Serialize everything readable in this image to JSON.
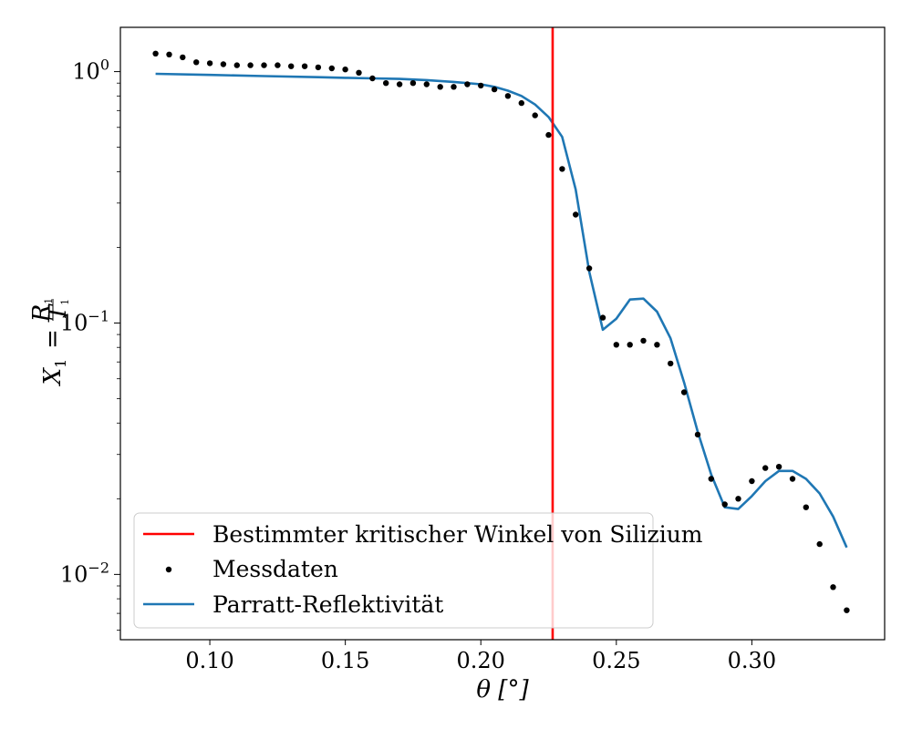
{
  "chart_data": {
    "type": "line",
    "xlabel": "θ [°]",
    "ylabel": "X₁ = R₁/T₁",
    "ylabel_parts": {
      "lhs": "X",
      "lhs_sub": "1",
      "eq": "=",
      "num": "R",
      "num_sub": "1",
      "den": "T",
      "den_sub": "1"
    },
    "xlim": [
      0.067,
      0.349
    ],
    "ylim": [
      0.0055,
      1.5
    ],
    "yscale": "log",
    "grid": false,
    "legend_position": "lower-left",
    "x_ticks": [
      0.1,
      0.15,
      0.2,
      0.25,
      0.3
    ],
    "x_tick_labels": [
      "0.10",
      "0.15",
      "0.20",
      "0.25",
      "0.30"
    ],
    "y_ticks": [
      1.0,
      0.1,
      0.01
    ],
    "y_tick_labels": [
      {
        "base": "10",
        "exp": "0"
      },
      {
        "base": "10",
        "exp": "−1"
      },
      {
        "base": "10",
        "exp": "−2"
      }
    ],
    "vline": {
      "name": "Bestimmter kritischer Winkel von Silizium",
      "x": 0.2265,
      "color": "#ff0000"
    },
    "series": [
      {
        "name": "Messdaten",
        "style": "points",
        "color": "#000000",
        "x": [
          0.08,
          0.085,
          0.09,
          0.095,
          0.1,
          0.105,
          0.11,
          0.115,
          0.12,
          0.125,
          0.13,
          0.135,
          0.14,
          0.145,
          0.15,
          0.155,
          0.16,
          0.165,
          0.17,
          0.175,
          0.18,
          0.185,
          0.19,
          0.195,
          0.2,
          0.205,
          0.21,
          0.215,
          0.22,
          0.225,
          0.23,
          0.235,
          0.24,
          0.245,
          0.25,
          0.255,
          0.26,
          0.265,
          0.27,
          0.275,
          0.28,
          0.285,
          0.29,
          0.295,
          0.3,
          0.305,
          0.31,
          0.315,
          0.32,
          0.325,
          0.33,
          0.335
        ],
        "y": [
          1.18,
          1.17,
          1.14,
          1.09,
          1.08,
          1.07,
          1.06,
          1.06,
          1.06,
          1.06,
          1.05,
          1.05,
          1.04,
          1.03,
          1.02,
          0.99,
          0.94,
          0.9,
          0.89,
          0.9,
          0.89,
          0.87,
          0.87,
          0.89,
          0.88,
          0.85,
          0.8,
          0.75,
          0.67,
          0.56,
          0.41,
          0.27,
          0.165,
          0.105,
          0.082,
          0.082,
          0.085,
          0.082,
          0.069,
          0.053,
          0.036,
          0.024,
          0.019,
          0.02,
          0.0235,
          0.0265,
          0.0268,
          0.024,
          0.0185,
          0.0132,
          0.0089,
          0.0072
        ]
      },
      {
        "name": "Parratt-Reflektivität",
        "style": "line",
        "color": "#1f77b4",
        "x": [
          0.08,
          0.1,
          0.12,
          0.14,
          0.15,
          0.16,
          0.17,
          0.18,
          0.19,
          0.2,
          0.205,
          0.21,
          0.215,
          0.22,
          0.225,
          0.23,
          0.235,
          0.24,
          0.245,
          0.25,
          0.255,
          0.26,
          0.265,
          0.27,
          0.275,
          0.28,
          0.285,
          0.29,
          0.295,
          0.3,
          0.305,
          0.31,
          0.315,
          0.32,
          0.325,
          0.33,
          0.335
        ],
        "y": [
          0.98,
          0.97,
          0.96,
          0.95,
          0.945,
          0.94,
          0.935,
          0.925,
          0.91,
          0.89,
          0.87,
          0.84,
          0.8,
          0.74,
          0.66,
          0.55,
          0.34,
          0.16,
          0.094,
          0.104,
          0.124,
          0.125,
          0.111,
          0.087,
          0.058,
          0.037,
          0.025,
          0.0185,
          0.0182,
          0.0205,
          0.0235,
          0.0258,
          0.0258,
          0.024,
          0.021,
          0.017,
          0.0128
        ]
      }
    ]
  }
}
